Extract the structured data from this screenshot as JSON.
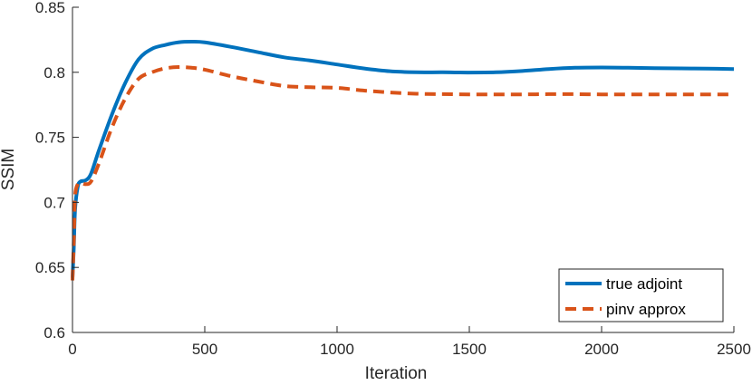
{
  "chart_data": {
    "type": "line",
    "title": "",
    "xlabel": "Iteration",
    "ylabel": "SSIM",
    "xlim": [
      0,
      2500
    ],
    "ylim": [
      0.6,
      0.85
    ],
    "xticks": [
      0,
      500,
      1000,
      1500,
      2000,
      2500
    ],
    "xtick_labels": [
      "0",
      "500",
      "1000",
      "1500",
      "2000",
      "2500"
    ],
    "yticks": [
      0.6,
      0.65,
      0.7,
      0.75,
      0.8,
      0.85
    ],
    "ytick_labels": [
      "0.6",
      "0.65",
      "0.7",
      "0.75",
      "0.8",
      "0.85"
    ],
    "grid": false,
    "legend_position": "bottom-right",
    "series": [
      {
        "name": "true adjoint",
        "color": "#0072BD",
        "style": "solid",
        "x": [
          0,
          5,
          10,
          20,
          30,
          50,
          70,
          100,
          150,
          200,
          250,
          300,
          350,
          400,
          450,
          500,
          600,
          700,
          800,
          900,
          1000,
          1100,
          1200,
          1300,
          1400,
          1500,
          1600,
          1700,
          1800,
          1900,
          2000,
          2100,
          2200,
          2300,
          2400,
          2500
        ],
        "y": [
          0.642,
          0.665,
          0.695,
          0.712,
          0.716,
          0.717,
          0.722,
          0.74,
          0.768,
          0.792,
          0.81,
          0.818,
          0.821,
          0.823,
          0.8235,
          0.823,
          0.8195,
          0.8155,
          0.8115,
          0.809,
          0.806,
          0.803,
          0.8008,
          0.8,
          0.8,
          0.7998,
          0.8,
          0.801,
          0.8025,
          0.8035,
          0.8037,
          0.8035,
          0.8032,
          0.803,
          0.8028,
          0.8025
        ]
      },
      {
        "name": "pinv approx",
        "color": "#D95319",
        "style": "dashed",
        "x": [
          0,
          5,
          10,
          20,
          30,
          50,
          70,
          100,
          150,
          200,
          250,
          300,
          350,
          400,
          450,
          500,
          600,
          700,
          800,
          900,
          1000,
          1100,
          1200,
          1300,
          1400,
          1500,
          1600,
          1700,
          1800,
          1900,
          2000,
          2100,
          2200,
          2300,
          2400,
          2500
        ],
        "y": [
          0.64,
          0.67,
          0.705,
          0.714,
          0.715,
          0.714,
          0.716,
          0.73,
          0.758,
          0.78,
          0.795,
          0.8,
          0.803,
          0.804,
          0.8035,
          0.802,
          0.797,
          0.793,
          0.7895,
          0.7885,
          0.788,
          0.786,
          0.7845,
          0.7835,
          0.7832,
          0.783,
          0.783,
          0.783,
          0.7832,
          0.7832,
          0.783,
          0.783,
          0.783,
          0.783,
          0.783,
          0.783
        ]
      }
    ]
  }
}
